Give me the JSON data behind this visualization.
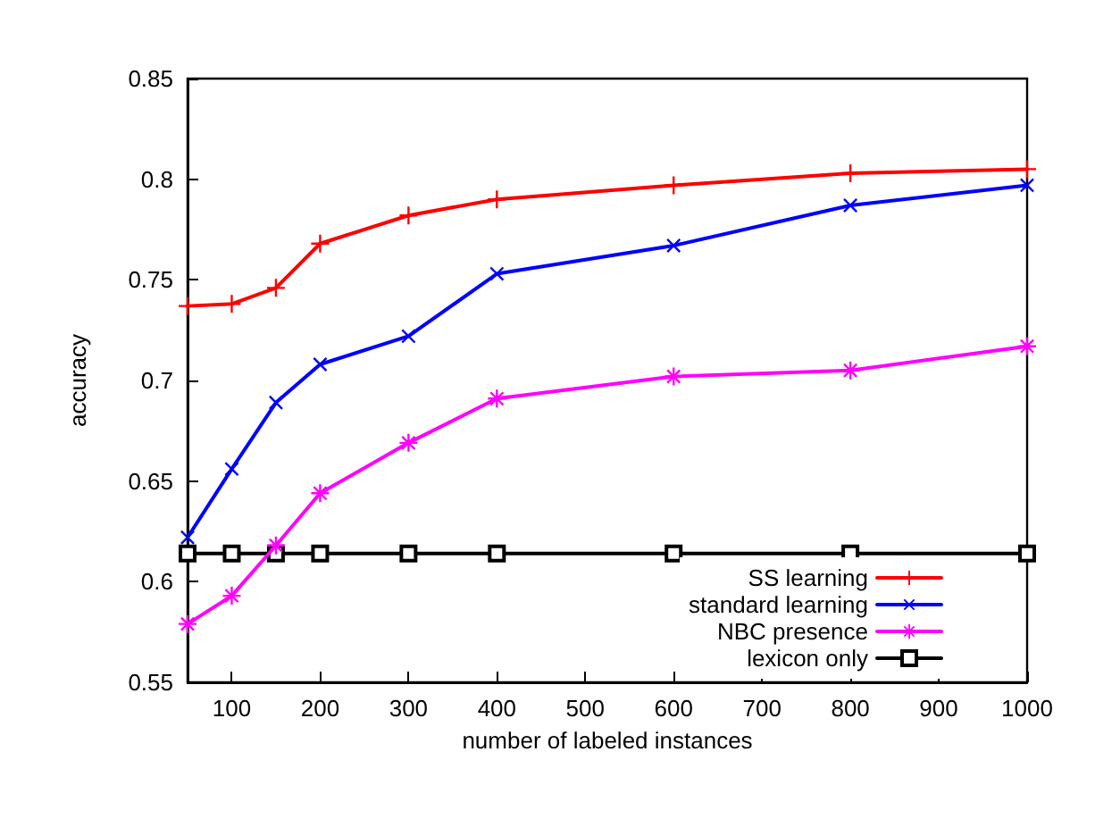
{
  "chart_data": {
    "type": "line",
    "xlabel": "number of labeled instances",
    "ylabel": "accuracy",
    "x": [
      50,
      100,
      150,
      200,
      300,
      400,
      600,
      800,
      1000
    ],
    "series": [
      {
        "name": "SS learning",
        "color": "#ff0000",
        "marker": "cross",
        "values": [
          0.737,
          0.738,
          0.746,
          0.768,
          0.782,
          0.79,
          0.797,
          0.803,
          0.805
        ]
      },
      {
        "name": "standard learning",
        "color": "#0000ff",
        "marker": "x",
        "values": [
          0.622,
          0.656,
          0.689,
          0.708,
          0.722,
          0.753,
          0.767,
          0.787,
          0.797
        ]
      },
      {
        "name": "NBC presence",
        "color": "#ff00ff",
        "marker": "star",
        "values": [
          0.579,
          0.593,
          0.618,
          0.644,
          0.669,
          0.691,
          0.702,
          0.705,
          0.717
        ]
      },
      {
        "name": "lexicon only",
        "color": "#000000",
        "marker": "square",
        "values": [
          0.614,
          0.614,
          0.614,
          0.614,
          0.614,
          0.614,
          0.614,
          0.614,
          0.614
        ]
      }
    ],
    "xlim": [
      50,
      1000
    ],
    "xticks": [
      100,
      200,
      300,
      400,
      500,
      600,
      700,
      800,
      900,
      1000
    ],
    "ylim": [
      0.55,
      0.85
    ],
    "yticks": [
      0.55,
      0.6,
      0.65,
      0.7,
      0.75,
      0.8,
      0.85
    ],
    "grid": false,
    "legend": "bottom right",
    "line_style": "solid"
  }
}
